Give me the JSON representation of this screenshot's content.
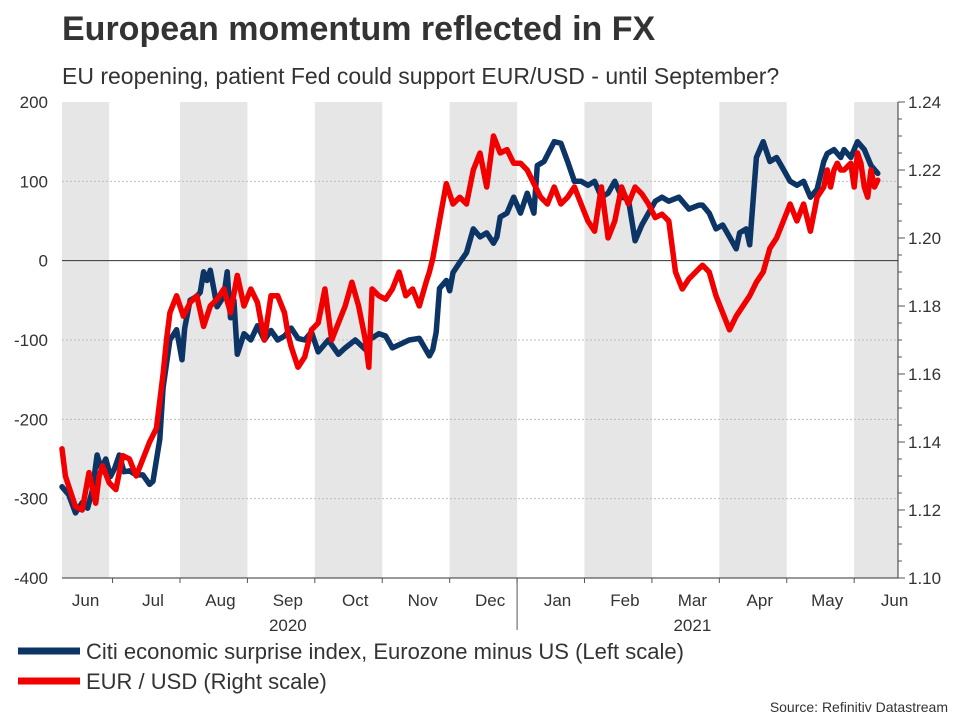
{
  "chart_data": {
    "type": "line",
    "title": "European momentum reflected in FX",
    "subtitle": "EU reopening, patient Fed could support EUR/USD - until September?",
    "source": "Source: Refinitiv Datastream",
    "x_axis": {
      "month_labels": [
        "Jun",
        "Jul",
        "Aug",
        "Sep",
        "Oct",
        "Nov",
        "Dec",
        "Jan",
        "Feb",
        "Mar",
        "Apr",
        "May",
        "Jun"
      ],
      "year_labels": [
        "2020",
        "2021"
      ],
      "range_months": [
        0,
        12.4
      ],
      "shaded_bands": [
        [
          0,
          0.7
        ],
        [
          1.75,
          2.75
        ],
        [
          3.75,
          4.75
        ],
        [
          5.75,
          6.75
        ],
        [
          7.75,
          8.75
        ],
        [
          9.75,
          10.75
        ],
        [
          11.75,
          12.4
        ]
      ]
    },
    "left_axis": {
      "ticks": [
        200,
        100,
        0,
        -100,
        -200,
        -300,
        -400
      ],
      "ylim": [
        -400,
        200
      ]
    },
    "right_axis": {
      "ticks": [
        "1.24",
        "1.22",
        "1.20",
        "1.18",
        "1.16",
        "1.14",
        "1.12",
        "1.10"
      ],
      "ylim": [
        1.1,
        1.24
      ]
    },
    "legend": {
      "position": "bottom-left"
    },
    "colors": {
      "citi": "#0c3566",
      "eurusd": "#f20000",
      "band": "#e6e6e6",
      "grid": "#bdbdbd"
    },
    "series": [
      {
        "name": "Citi economic surprise index, Eurozone minus US (Left scale)",
        "axis": "left",
        "points": [
          [
            0.0,
            -285
          ],
          [
            0.1,
            -295
          ],
          [
            0.2,
            -318
          ],
          [
            0.3,
            -305
          ],
          [
            0.38,
            -312
          ],
          [
            0.45,
            -290
          ],
          [
            0.52,
            -245
          ],
          [
            0.58,
            -262
          ],
          [
            0.65,
            -250
          ],
          [
            0.72,
            -272
          ],
          [
            0.78,
            -262
          ],
          [
            0.85,
            -245
          ],
          [
            0.92,
            -266
          ],
          [
            1.0,
            -265
          ],
          [
            1.1,
            -270
          ],
          [
            1.2,
            -270
          ],
          [
            1.3,
            -282
          ],
          [
            1.35,
            -278
          ],
          [
            1.45,
            -225
          ],
          [
            1.5,
            -160
          ],
          [
            1.6,
            -100
          ],
          [
            1.7,
            -87
          ],
          [
            1.78,
            -125
          ],
          [
            1.82,
            -85
          ],
          [
            1.9,
            -50
          ],
          [
            2.0,
            -45
          ],
          [
            2.05,
            -40
          ],
          [
            2.1,
            -14
          ],
          [
            2.15,
            -25
          ],
          [
            2.2,
            -12
          ],
          [
            2.3,
            -58
          ],
          [
            2.4,
            -45
          ],
          [
            2.45,
            -14
          ],
          [
            2.5,
            -72
          ],
          [
            2.55,
            -50
          ],
          [
            2.6,
            -118
          ],
          [
            2.7,
            -92
          ],
          [
            2.8,
            -100
          ],
          [
            2.9,
            -82
          ],
          [
            3.0,
            -100
          ],
          [
            3.1,
            -88
          ],
          [
            3.2,
            -100
          ],
          [
            3.3,
            -95
          ],
          [
            3.4,
            -85
          ],
          [
            3.5,
            -98
          ],
          [
            3.6,
            -100
          ],
          [
            3.7,
            -90
          ],
          [
            3.8,
            -115
          ],
          [
            3.95,
            -100
          ],
          [
            4.1,
            -118
          ],
          [
            4.2,
            -110
          ],
          [
            4.35,
            -100
          ],
          [
            4.5,
            -112
          ],
          [
            4.55,
            -100
          ],
          [
            4.7,
            -92
          ],
          [
            4.8,
            -95
          ],
          [
            4.9,
            -110
          ],
          [
            5.0,
            -106
          ],
          [
            5.15,
            -100
          ],
          [
            5.3,
            -98
          ],
          [
            5.45,
            -120
          ],
          [
            5.5,
            -112
          ],
          [
            5.55,
            -90
          ],
          [
            5.6,
            -35
          ],
          [
            5.7,
            -25
          ],
          [
            5.75,
            -38
          ],
          [
            5.8,
            -15
          ],
          [
            5.9,
            -2
          ],
          [
            6.0,
            10
          ],
          [
            6.1,
            40
          ],
          [
            6.2,
            30
          ],
          [
            6.3,
            35
          ],
          [
            6.4,
            22
          ],
          [
            6.45,
            30
          ],
          [
            6.5,
            55
          ],
          [
            6.6,
            60
          ],
          [
            6.7,
            80
          ],
          [
            6.8,
            60
          ],
          [
            6.9,
            85
          ],
          [
            7.0,
            60
          ],
          [
            7.05,
            120
          ],
          [
            7.15,
            125
          ],
          [
            7.3,
            150
          ],
          [
            7.4,
            148
          ],
          [
            7.5,
            125
          ],
          [
            7.6,
            100
          ],
          [
            7.7,
            100
          ],
          [
            7.8,
            95
          ],
          [
            7.9,
            100
          ],
          [
            8.0,
            80
          ],
          [
            8.1,
            85
          ],
          [
            8.2,
            100
          ],
          [
            8.3,
            80
          ],
          [
            8.4,
            78
          ],
          [
            8.5,
            25
          ],
          [
            8.6,
            45
          ],
          [
            8.7,
            60
          ],
          [
            8.8,
            75
          ],
          [
            8.9,
            80
          ],
          [
            9.0,
            75
          ],
          [
            9.15,
            80
          ],
          [
            9.3,
            65
          ],
          [
            9.45,
            70
          ],
          [
            9.5,
            70
          ],
          [
            9.6,
            60
          ],
          [
            9.7,
            40
          ],
          [
            9.8,
            45
          ],
          [
            9.9,
            30
          ],
          [
            10.0,
            15
          ],
          [
            10.05,
            35
          ],
          [
            10.15,
            40
          ],
          [
            10.2,
            20
          ],
          [
            10.3,
            130
          ],
          [
            10.4,
            150
          ],
          [
            10.5,
            125
          ],
          [
            10.6,
            130
          ],
          [
            10.7,
            115
          ],
          [
            10.8,
            100
          ],
          [
            10.9,
            95
          ],
          [
            11.0,
            100
          ],
          [
            11.1,
            80
          ],
          [
            11.2,
            90
          ],
          [
            11.3,
            125
          ],
          [
            11.35,
            135
          ],
          [
            11.45,
            140
          ],
          [
            11.55,
            130
          ],
          [
            11.6,
            140
          ],
          [
            11.7,
            130
          ],
          [
            11.8,
            150
          ],
          [
            11.9,
            140
          ],
          [
            12.0,
            120
          ],
          [
            12.1,
            110
          ]
        ]
      },
      {
        "name": "EUR / USD (Right scale)",
        "axis": "right",
        "points": [
          [
            0.0,
            1.138
          ],
          [
            0.05,
            1.13
          ],
          [
            0.1,
            1.127
          ],
          [
            0.2,
            1.121
          ],
          [
            0.3,
            1.12
          ],
          [
            0.4,
            1.131
          ],
          [
            0.5,
            1.122
          ],
          [
            0.55,
            1.13
          ],
          [
            0.6,
            1.133
          ],
          [
            0.7,
            1.128
          ],
          [
            0.8,
            1.126
          ],
          [
            0.9,
            1.136
          ],
          [
            1.0,
            1.135
          ],
          [
            1.1,
            1.13
          ],
          [
            1.2,
            1.135
          ],
          [
            1.3,
            1.14
          ],
          [
            1.4,
            1.144
          ],
          [
            1.5,
            1.16
          ],
          [
            1.55,
            1.17
          ],
          [
            1.6,
            1.178
          ],
          [
            1.7,
            1.183
          ],
          [
            1.8,
            1.177
          ],
          [
            1.9,
            1.181
          ],
          [
            2.0,
            1.183
          ],
          [
            2.1,
            1.174
          ],
          [
            2.2,
            1.18
          ],
          [
            2.3,
            1.182
          ],
          [
            2.4,
            1.185
          ],
          [
            2.5,
            1.178
          ],
          [
            2.6,
            1.189
          ],
          [
            2.7,
            1.18
          ],
          [
            2.8,
            1.185
          ],
          [
            2.9,
            1.181
          ],
          [
            3.0,
            1.17
          ],
          [
            3.1,
            1.183
          ],
          [
            3.2,
            1.183
          ],
          [
            3.3,
            1.178
          ],
          [
            3.35,
            1.172
          ],
          [
            3.4,
            1.168
          ],
          [
            3.5,
            1.162
          ],
          [
            3.6,
            1.165
          ],
          [
            3.7,
            1.173
          ],
          [
            3.8,
            1.175
          ],
          [
            3.9,
            1.185
          ],
          [
            4.0,
            1.17
          ],
          [
            4.1,
            1.175
          ],
          [
            4.2,
            1.18
          ],
          [
            4.3,
            1.187
          ],
          [
            4.4,
            1.18
          ],
          [
            4.5,
            1.17
          ],
          [
            4.55,
            1.162
          ],
          [
            4.6,
            1.185
          ],
          [
            4.7,
            1.183
          ],
          [
            4.8,
            1.182
          ],
          [
            4.9,
            1.185
          ],
          [
            5.0,
            1.19
          ],
          [
            5.1,
            1.183
          ],
          [
            5.2,
            1.185
          ],
          [
            5.3,
            1.18
          ],
          [
            5.4,
            1.187
          ],
          [
            5.45,
            1.19
          ],
          [
            5.5,
            1.194
          ],
          [
            5.6,
            1.205
          ],
          [
            5.7,
            1.216
          ],
          [
            5.8,
            1.21
          ],
          [
            5.9,
            1.212
          ],
          [
            6.0,
            1.21
          ],
          [
            6.1,
            1.22
          ],
          [
            6.2,
            1.225
          ],
          [
            6.3,
            1.215
          ],
          [
            6.4,
            1.23
          ],
          [
            6.5,
            1.225
          ],
          [
            6.6,
            1.226
          ],
          [
            6.7,
            1.222
          ],
          [
            6.8,
            1.222
          ],
          [
            6.9,
            1.22
          ],
          [
            7.0,
            1.216
          ],
          [
            7.1,
            1.212
          ],
          [
            7.2,
            1.21
          ],
          [
            7.3,
            1.215
          ],
          [
            7.4,
            1.21
          ],
          [
            7.5,
            1.212
          ],
          [
            7.6,
            1.215
          ],
          [
            7.7,
            1.21
          ],
          [
            7.8,
            1.205
          ],
          [
            7.9,
            1.202
          ],
          [
            8.0,
            1.215
          ],
          [
            8.1,
            1.2
          ],
          [
            8.2,
            1.205
          ],
          [
            8.3,
            1.215
          ],
          [
            8.4,
            1.21
          ],
          [
            8.5,
            1.215
          ],
          [
            8.6,
            1.213
          ],
          [
            8.7,
            1.21
          ],
          [
            8.8,
            1.206
          ],
          [
            8.9,
            1.207
          ],
          [
            9.0,
            1.205
          ],
          [
            9.1,
            1.19
          ],
          [
            9.2,
            1.185
          ],
          [
            9.3,
            1.188
          ],
          [
            9.4,
            1.19
          ],
          [
            9.5,
            1.192
          ],
          [
            9.6,
            1.19
          ],
          [
            9.7,
            1.183
          ],
          [
            9.8,
            1.178
          ],
          [
            9.9,
            1.173
          ],
          [
            10.0,
            1.177
          ],
          [
            10.2,
            1.183
          ],
          [
            10.3,
            1.187
          ],
          [
            10.4,
            1.19
          ],
          [
            10.5,
            1.197
          ],
          [
            10.6,
            1.2
          ],
          [
            10.7,
            1.205
          ],
          [
            10.8,
            1.21
          ],
          [
            10.9,
            1.205
          ],
          [
            11.0,
            1.21
          ],
          [
            11.1,
            1.202
          ],
          [
            11.2,
            1.212
          ],
          [
            11.3,
            1.215
          ],
          [
            11.35,
            1.22
          ],
          [
            11.4,
            1.215
          ],
          [
            11.45,
            1.22
          ],
          [
            11.5,
            1.222
          ],
          [
            11.55,
            1.22
          ],
          [
            11.6,
            1.22
          ],
          [
            11.7,
            1.222
          ],
          [
            11.75,
            1.215
          ],
          [
            11.8,
            1.225
          ],
          [
            11.85,
            1.222
          ],
          [
            11.9,
            1.215
          ],
          [
            11.95,
            1.212
          ],
          [
            12.0,
            1.22
          ],
          [
            12.05,
            1.215
          ],
          [
            12.1,
            1.217
          ]
        ]
      }
    ]
  }
}
